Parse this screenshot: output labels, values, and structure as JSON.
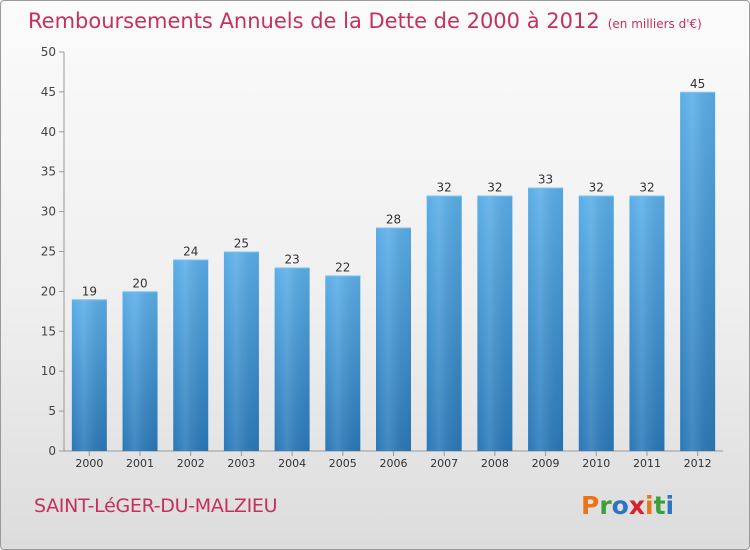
{
  "header": {
    "title": "Remboursements Annuels de la Dette de 2000 à 2012",
    "unit": "(en milliers d'€)"
  },
  "footer": {
    "town": "SAINT-LéGER-DU-MALZIEU",
    "brand": "Proxiti",
    "brand_colors": [
      "#e8751a",
      "#3aa13a",
      "#2f74c0",
      "#d8212a",
      "#e8751a",
      "#3aa13a",
      "#2f74c0"
    ]
  },
  "chart_data": {
    "type": "bar",
    "title": "Remboursements Annuels de la Dette de 2000 à 2012",
    "xlabel": "",
    "ylabel": "",
    "categories": [
      "2000",
      "2001",
      "2002",
      "2003",
      "2004",
      "2005",
      "2006",
      "2007",
      "2008",
      "2009",
      "2010",
      "2011",
      "2012"
    ],
    "values": [
      19,
      20,
      24,
      25,
      23,
      22,
      28,
      32,
      32,
      33,
      32,
      32,
      45
    ],
    "ylim": [
      0,
      50
    ],
    "yticks": [
      0,
      5,
      10,
      15,
      20,
      25,
      30,
      35,
      40,
      45,
      50
    ],
    "grid": false,
    "bar_color_top": "#5aaee8",
    "bar_color_bottom": "#2a78b8"
  }
}
